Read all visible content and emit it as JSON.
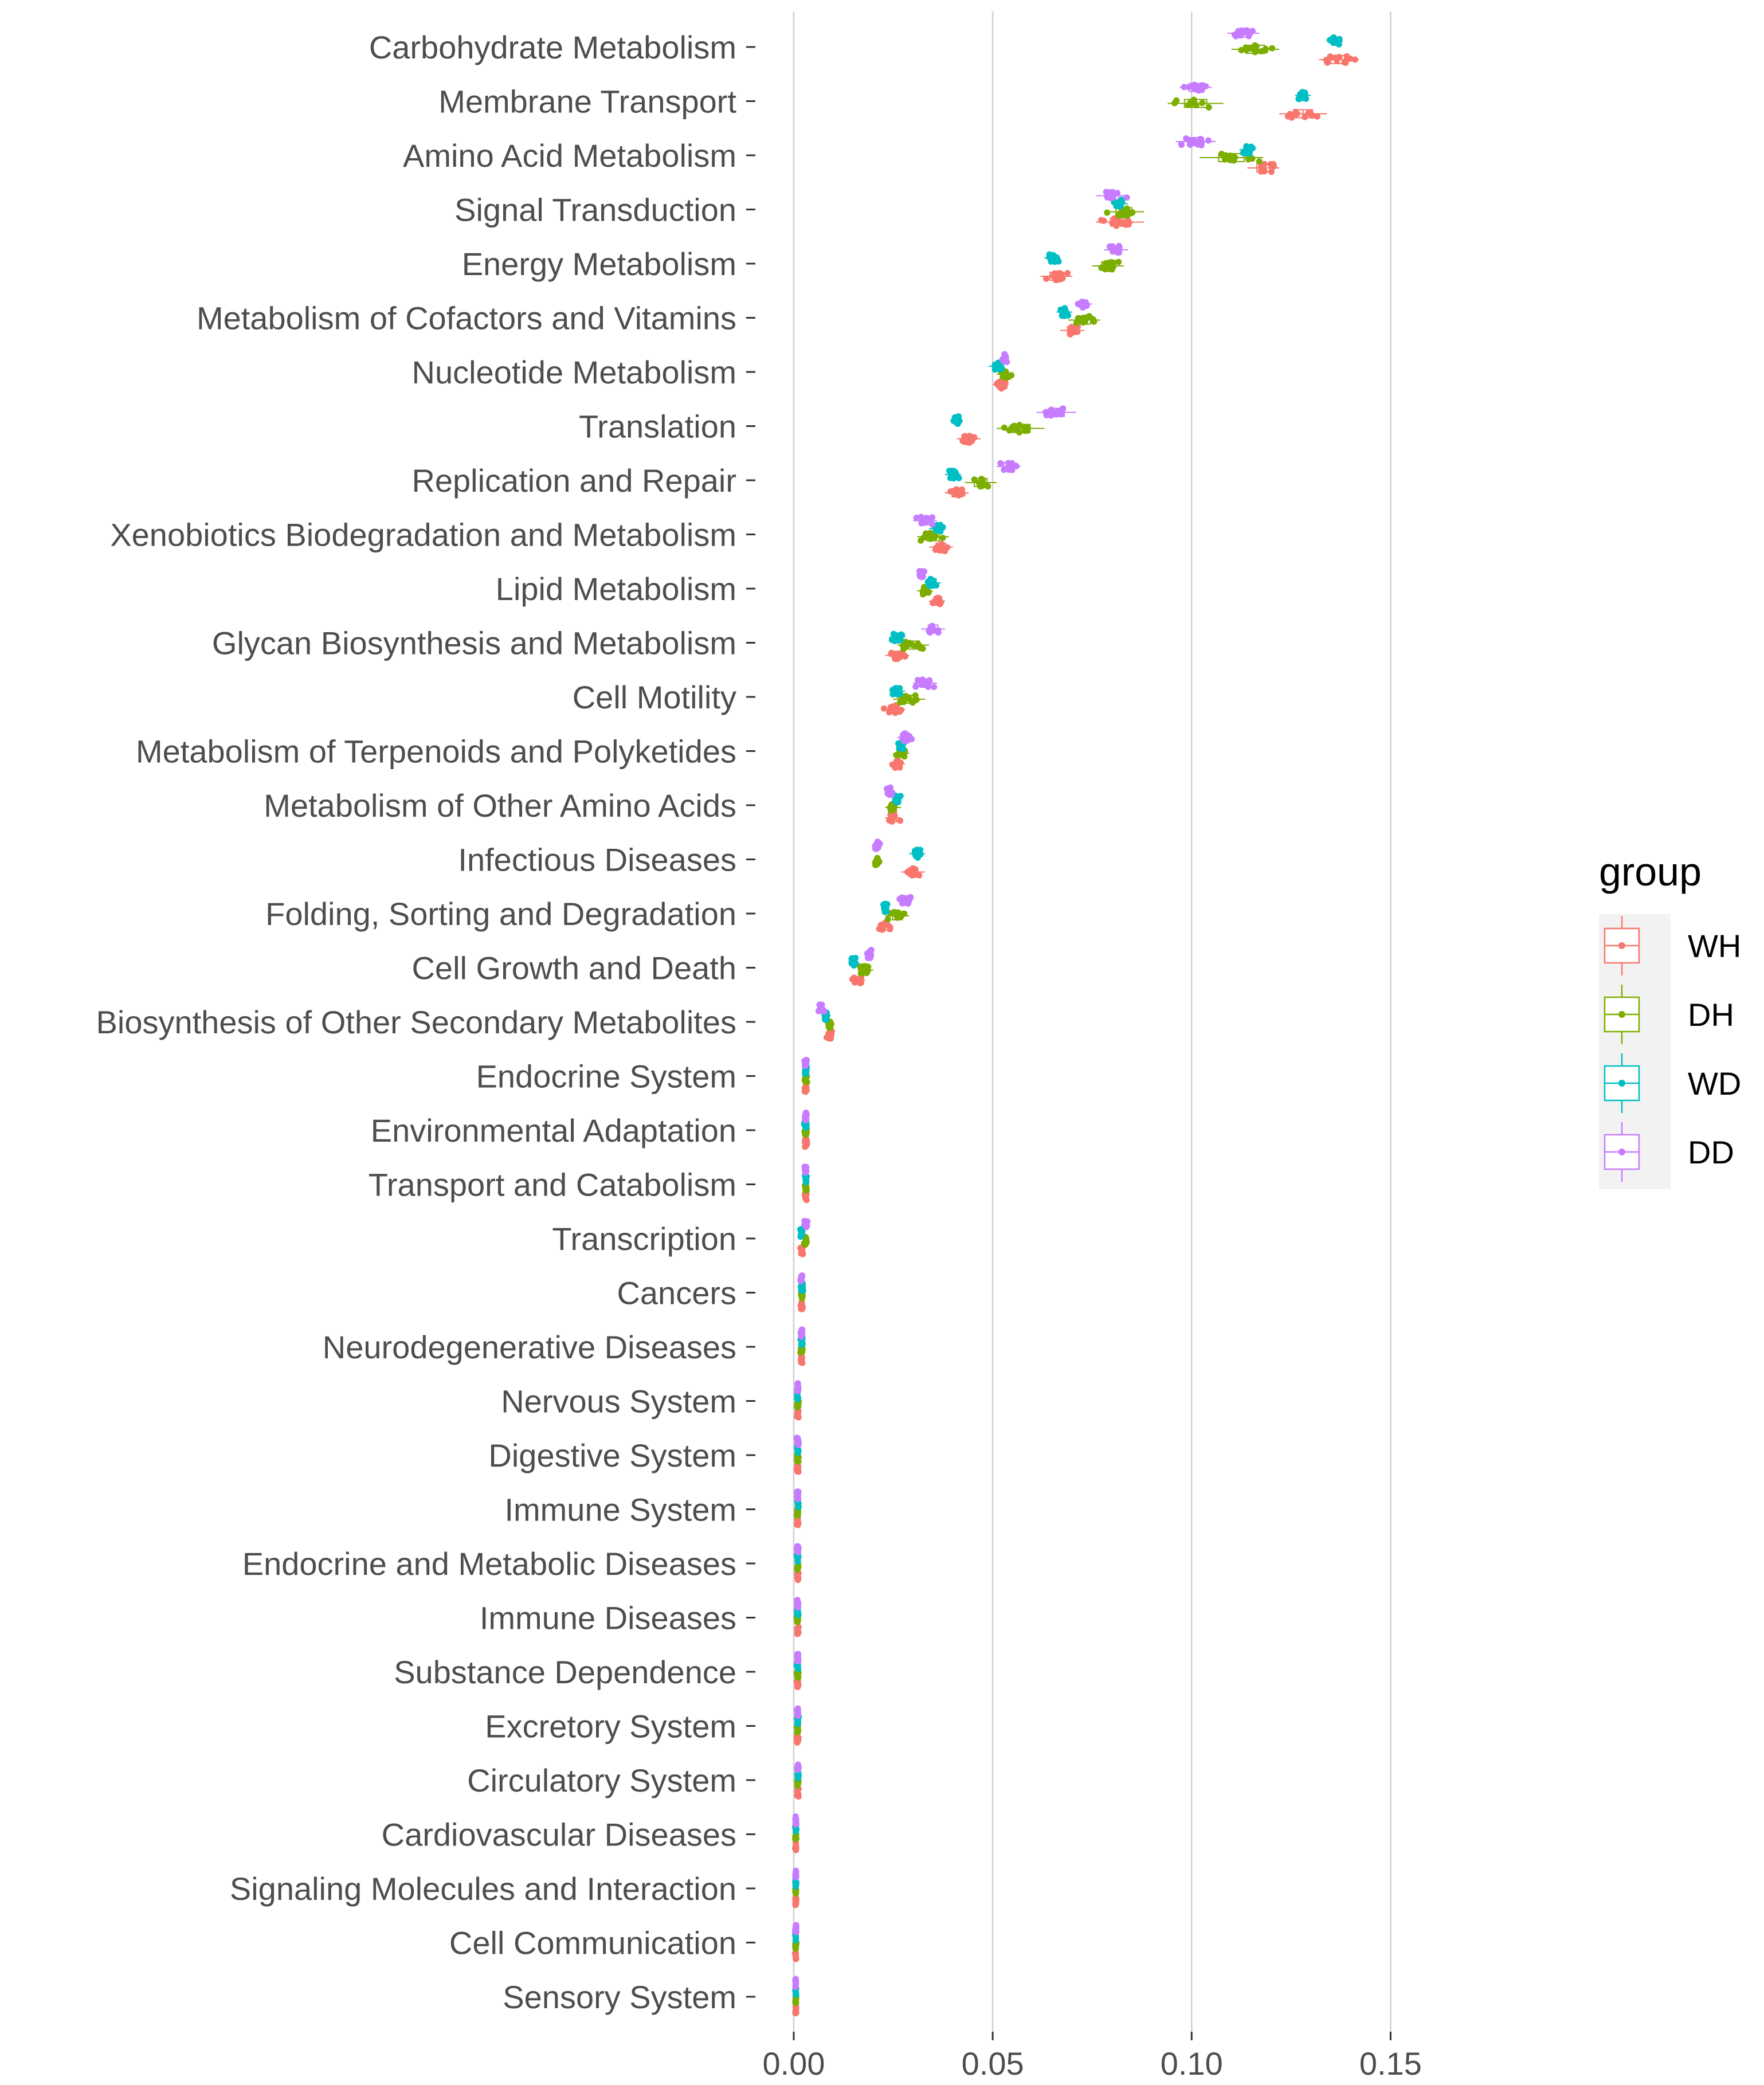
{
  "chart_data": {
    "type": "boxplot-jitter",
    "orientation": "horizontal",
    "xlim": [
      0,
      0.175
    ],
    "x_ticks": [
      {
        "value": 0.0,
        "label": "0.00"
      },
      {
        "value": 0.05,
        "label": "0.05"
      },
      {
        "value": 0.1,
        "label": "0.10"
      },
      {
        "value": 0.15,
        "label": "0.15"
      }
    ],
    "legend": {
      "title": "group",
      "position": "right",
      "items": [
        {
          "label": "WH",
          "color": "#F8766D"
        },
        {
          "label": "DH",
          "color": "#7CAE00"
        },
        {
          "label": "WD",
          "color": "#00BFC4"
        },
        {
          "label": "DD",
          "color": "#C77CFF"
        }
      ]
    },
    "group_order": [
      "WH",
      "DH",
      "WD",
      "DD"
    ],
    "categories": [
      "Carbohydrate Metabolism",
      "Membrane Transport",
      "Amino Acid Metabolism",
      "Signal Transduction",
      "Energy Metabolism",
      "Metabolism of Cofactors and Vitamins",
      "Nucleotide Metabolism",
      "Translation",
      "Replication and Repair",
      "Xenobiotics Biodegradation and Metabolism",
      "Lipid Metabolism",
      "Glycan Biosynthesis and Metabolism",
      "Cell Motility",
      "Metabolism of Terpenoids and Polyketides",
      "Metabolism of Other Amino Acids",
      "Infectious Diseases",
      "Folding, Sorting and Degradation",
      "Cell Growth and Death",
      "Biosynthesis of Other Secondary Metabolites",
      "Endocrine System",
      "Environmental Adaptation",
      "Transport and Catabolism",
      "Transcription",
      "Cancers",
      "Neurodegenerative Diseases",
      "Nervous System",
      "Digestive System",
      "Immune System",
      "Endocrine and Metabolic Diseases",
      "Immune Diseases",
      "Substance Dependence",
      "Excretory System",
      "Circulatory System",
      "Cardiovascular Diseases",
      "Signaling Molecules and Interaction",
      "Cell Communication",
      "Sensory System"
    ],
    "series": [
      {
        "name": "WH",
        "centers": [
          0.137,
          0.128,
          0.118,
          0.082,
          0.066,
          0.07,
          0.052,
          0.044,
          0.041,
          0.037,
          0.036,
          0.026,
          0.025,
          0.026,
          0.025,
          0.03,
          0.023,
          0.016,
          0.009,
          0.003,
          0.003,
          0.003,
          0.002,
          0.002,
          0.002,
          0.001,
          0.001,
          0.001,
          0.001,
          0.001,
          0.001,
          0.001,
          0.001,
          0.0005,
          0.0005,
          0.0005,
          0.0005
        ],
        "spreads": [
          0.005,
          0.006,
          0.004,
          0.006,
          0.004,
          0.003,
          0.002,
          0.003,
          0.003,
          0.003,
          0.002,
          0.003,
          0.003,
          0.002,
          0.002,
          0.003,
          0.002,
          0.002,
          0.001,
          0.0005,
          0.0005,
          0.0005,
          0.0005,
          0.0004,
          0.0004,
          0.0003,
          0.0003,
          0.0003,
          0.0003,
          0.0003,
          0.0003,
          0.0003,
          0.0003,
          0.0002,
          0.0002,
          0.0002,
          0.0002
        ]
      },
      {
        "name": "DH",
        "centers": [
          0.116,
          0.101,
          0.11,
          0.083,
          0.079,
          0.073,
          0.053,
          0.057,
          0.047,
          0.035,
          0.033,
          0.03,
          0.029,
          0.027,
          0.025,
          0.021,
          0.026,
          0.018,
          0.009,
          0.003,
          0.003,
          0.003,
          0.003,
          0.002,
          0.002,
          0.001,
          0.001,
          0.001,
          0.001,
          0.001,
          0.001,
          0.001,
          0.001,
          0.0005,
          0.0005,
          0.0005,
          0.0005
        ],
        "spreads": [
          0.006,
          0.007,
          0.008,
          0.005,
          0.004,
          0.004,
          0.002,
          0.006,
          0.004,
          0.004,
          0.002,
          0.004,
          0.004,
          0.002,
          0.002,
          0.001,
          0.003,
          0.002,
          0.001,
          0.0005,
          0.0005,
          0.0005,
          0.0005,
          0.0004,
          0.0004,
          0.0003,
          0.0003,
          0.0003,
          0.0003,
          0.0003,
          0.0003,
          0.0003,
          0.0003,
          0.0002,
          0.0002,
          0.0002,
          0.0002
        ]
      },
      {
        "name": "WD",
        "centers": [
          0.136,
          0.128,
          0.114,
          0.082,
          0.065,
          0.068,
          0.051,
          0.041,
          0.04,
          0.036,
          0.035,
          0.026,
          0.026,
          0.027,
          0.026,
          0.031,
          0.023,
          0.015,
          0.008,
          0.003,
          0.003,
          0.003,
          0.002,
          0.002,
          0.002,
          0.001,
          0.001,
          0.001,
          0.001,
          0.001,
          0.001,
          0.001,
          0.001,
          0.0005,
          0.0005,
          0.0005,
          0.0005
        ],
        "spreads": [
          0.002,
          0.002,
          0.002,
          0.002,
          0.002,
          0.002,
          0.002,
          0.001,
          0.002,
          0.002,
          0.002,
          0.002,
          0.002,
          0.001,
          0.001,
          0.002,
          0.001,
          0.001,
          0.001,
          0.0005,
          0.0005,
          0.0005,
          0.0005,
          0.0004,
          0.0004,
          0.0003,
          0.0003,
          0.0003,
          0.0003,
          0.0003,
          0.0003,
          0.0003,
          0.0003,
          0.0002,
          0.0002,
          0.0002,
          0.0002
        ]
      },
      {
        "name": "DD",
        "centers": [
          0.113,
          0.101,
          0.101,
          0.08,
          0.081,
          0.073,
          0.053,
          0.066,
          0.054,
          0.033,
          0.032,
          0.035,
          0.033,
          0.028,
          0.024,
          0.021,
          0.028,
          0.019,
          0.007,
          0.003,
          0.003,
          0.003,
          0.003,
          0.002,
          0.002,
          0.001,
          0.001,
          0.001,
          0.001,
          0.001,
          0.001,
          0.001,
          0.001,
          0.0005,
          0.0005,
          0.0005,
          0.0005
        ],
        "spreads": [
          0.004,
          0.004,
          0.005,
          0.004,
          0.003,
          0.002,
          0.001,
          0.005,
          0.003,
          0.003,
          0.001,
          0.003,
          0.003,
          0.002,
          0.001,
          0.001,
          0.002,
          0.001,
          0.001,
          0.0005,
          0.0005,
          0.0005,
          0.0005,
          0.0004,
          0.0004,
          0.0003,
          0.0003,
          0.0003,
          0.0003,
          0.0003,
          0.0003,
          0.0003,
          0.0003,
          0.0002,
          0.0002,
          0.0002,
          0.0002
        ]
      }
    ],
    "points_per_group": 14,
    "grid": {
      "vertical_major": true,
      "horizontal": false
    }
  }
}
